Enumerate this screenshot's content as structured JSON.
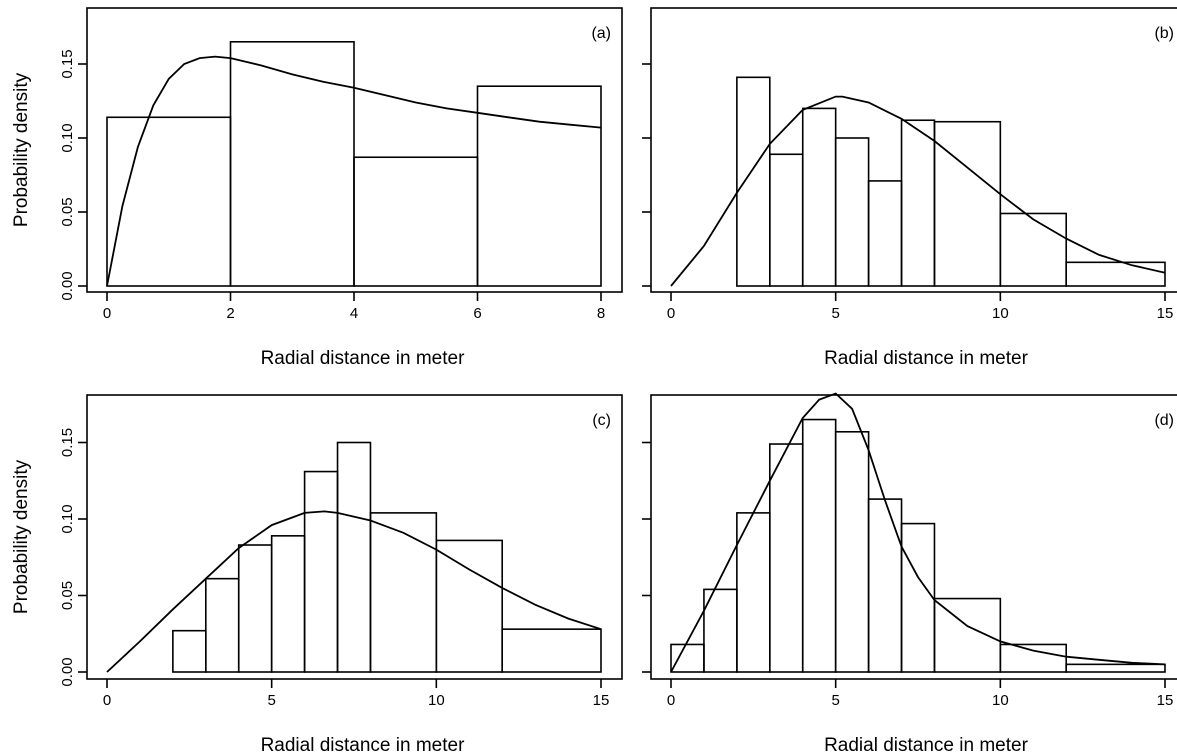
{
  "chart_data": [
    {
      "id": "a",
      "type": "bar",
      "panel_label": "(a)",
      "xlabel": "Radial distance in meter",
      "ylabel": "Probability density",
      "xlim": [
        0,
        8
      ],
      "ylim": [
        0,
        0.17
      ],
      "xticks": [
        0,
        2,
        4,
        6,
        8
      ],
      "yticks": [
        0.0,
        0.05,
        0.1,
        0.15
      ],
      "ytick_labels": [
        "0.00",
        "0.05",
        "0.10",
        "0.15"
      ],
      "bins": [
        [
          0,
          2
        ],
        [
          2,
          4
        ],
        [
          4,
          6
        ],
        [
          6,
          8
        ]
      ],
      "values": [
        0.114,
        0.165,
        0.087,
        0.135
      ],
      "curve": {
        "x": [
          0,
          0.25,
          0.5,
          0.75,
          1.0,
          1.25,
          1.5,
          1.75,
          2.0,
          2.5,
          3.0,
          3.5,
          4.0,
          4.5,
          5.0,
          5.5,
          6.0,
          6.5,
          7.0,
          7.5,
          8.0
        ],
        "y": [
          0,
          0.054,
          0.094,
          0.122,
          0.14,
          0.15,
          0.154,
          0.155,
          0.154,
          0.149,
          0.143,
          0.138,
          0.134,
          0.129,
          0.124,
          0.12,
          0.117,
          0.114,
          0.111,
          0.109,
          0.107
        ]
      }
    },
    {
      "id": "b",
      "type": "bar",
      "panel_label": "(b)",
      "xlabel": "Radial distance in meter",
      "ylabel": "",
      "xlim": [
        0,
        15
      ],
      "ylim": [
        0,
        0.17
      ],
      "xticks": [
        0,
        5,
        10,
        15
      ],
      "yticks": [
        0.0,
        0.05,
        0.1,
        0.15
      ],
      "ytick_labels": [],
      "bins": [
        [
          2,
          3
        ],
        [
          3,
          4
        ],
        [
          4,
          5
        ],
        [
          5,
          6
        ],
        [
          6,
          7
        ],
        [
          7,
          8
        ],
        [
          8,
          10
        ],
        [
          10,
          12
        ],
        [
          12,
          15
        ]
      ],
      "values": [
        0.141,
        0.089,
        0.12,
        0.1,
        0.071,
        0.112,
        0.111,
        0.049,
        0.016
      ],
      "curve": {
        "x": [
          0,
          1,
          2,
          3,
          4,
          5,
          5.2,
          6,
          7,
          8,
          9,
          10,
          11,
          12,
          13,
          14,
          15
        ],
        "y": [
          0,
          0.027,
          0.063,
          0.096,
          0.119,
          0.128,
          0.128,
          0.124,
          0.113,
          0.098,
          0.08,
          0.062,
          0.045,
          0.032,
          0.021,
          0.014,
          0.009
        ]
      }
    },
    {
      "id": "c",
      "type": "bar",
      "panel_label": "(c)",
      "xlabel": "Radial distance in meter",
      "ylabel": "Probability density",
      "xlim": [
        0,
        15
      ],
      "ylim": [
        0,
        0.185
      ],
      "xticks": [
        0,
        5,
        10,
        15
      ],
      "yticks": [
        0.0,
        0.05,
        0.1,
        0.15
      ],
      "ytick_labels": [
        "0.00",
        "0.05",
        "0.10",
        "0.15"
      ],
      "bins": [
        [
          2,
          3
        ],
        [
          3,
          4
        ],
        [
          4,
          5
        ],
        [
          5,
          6
        ],
        [
          6,
          7
        ],
        [
          7,
          8
        ],
        [
          8,
          10
        ],
        [
          10,
          12
        ],
        [
          12,
          15
        ]
      ],
      "values": [
        0.027,
        0.061,
        0.083,
        0.089,
        0.131,
        0.15,
        0.104,
        0.086,
        0.028
      ],
      "curve": {
        "x": [
          0,
          1,
          2,
          3,
          4,
          5,
          6,
          6.6,
          7,
          8,
          9,
          10,
          11,
          12,
          13,
          14,
          15
        ],
        "y": [
          0,
          0.02,
          0.041,
          0.061,
          0.081,
          0.096,
          0.104,
          0.105,
          0.104,
          0.099,
          0.091,
          0.08,
          0.067,
          0.055,
          0.044,
          0.035,
          0.028
        ]
      }
    },
    {
      "id": "d",
      "type": "bar",
      "panel_label": "(d)",
      "xlabel": "Radial distance in meter",
      "ylabel": "",
      "xlim": [
        0,
        15
      ],
      "ylim": [
        0,
        0.185
      ],
      "xticks": [
        0,
        5,
        10,
        15
      ],
      "yticks": [
        0.0,
        0.05,
        0.1,
        0.15
      ],
      "ytick_labels": [],
      "bins": [
        [
          0,
          1
        ],
        [
          1,
          2
        ],
        [
          2,
          3
        ],
        [
          3,
          4
        ],
        [
          4,
          5
        ],
        [
          5,
          6
        ],
        [
          6,
          7
        ],
        [
          7,
          8
        ],
        [
          8,
          10
        ],
        [
          10,
          12
        ],
        [
          12,
          15
        ]
      ],
      "values": [
        0.018,
        0.054,
        0.104,
        0.149,
        0.165,
        0.157,
        0.113,
        0.097,
        0.048,
        0.018,
        0.005
      ],
      "curve": {
        "x": [
          0,
          1,
          2,
          3,
          4,
          4.5,
          5,
          5.5,
          6,
          6.5,
          7,
          7.5,
          8,
          9,
          10,
          11,
          12,
          13,
          14,
          15
        ],
        "y": [
          0,
          0.04,
          0.083,
          0.125,
          0.166,
          0.178,
          0.182,
          0.172,
          0.145,
          0.112,
          0.082,
          0.062,
          0.047,
          0.03,
          0.02,
          0.014,
          0.01,
          0.008,
          0.006,
          0.005
        ]
      }
    }
  ]
}
